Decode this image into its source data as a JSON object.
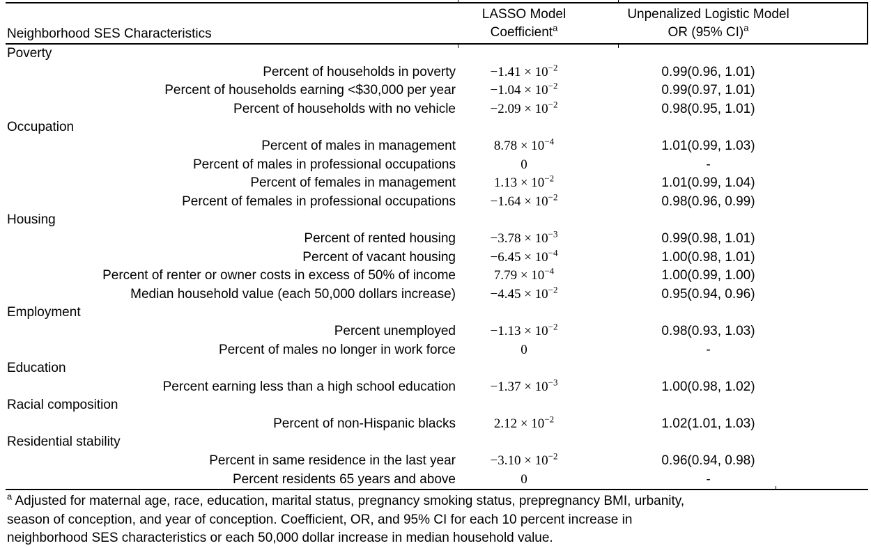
{
  "table": {
    "header": {
      "col1": "Neighborhood SES Characteristics",
      "col2_line1": "LASSO Model",
      "col2_line2": "Coefficient",
      "col2_sup": "a",
      "col3_line1": "Unpenalized Logistic Model",
      "col3_line2": "OR (95% CI)",
      "col3_sup": "a"
    },
    "sections": [
      {
        "name": "Poverty",
        "rows": [
          {
            "label": "Percent of households in poverty",
            "coef_base": "−1.41 × 10",
            "coef_exp": "−2",
            "or": "0.99(0.96, 1.01)"
          },
          {
            "label": "Percent of households earning <$30,000 per year",
            "coef_base": "−1.04 × 10",
            "coef_exp": "−2",
            "or": "0.99(0.97, 1.01)"
          },
          {
            "label": "Percent of households with no vehicle",
            "coef_base": "−2.09 × 10",
            "coef_exp": "−2",
            "or": "0.98(0.95, 1.01)"
          }
        ]
      },
      {
        "name": "Occupation",
        "rows": [
          {
            "label": "Percent of males in management",
            "coef_base": "8.78 × 10",
            "coef_exp": "−4",
            "or": "1.01(0.99, 1.03)"
          },
          {
            "label": "Percent of males in professional occupations",
            "coef_base": "0",
            "coef_exp": "",
            "or": "-"
          },
          {
            "label": "Percent of females in management",
            "coef_base": "1.13 × 10",
            "coef_exp": "−2",
            "or": "1.01(0.99, 1.04)"
          },
          {
            "label": "Percent of females in professional occupations",
            "coef_base": "−1.64 × 10",
            "coef_exp": "−2",
            "or": "0.98(0.96, 0.99)"
          }
        ]
      },
      {
        "name": "Housing",
        "rows": [
          {
            "label": "Percent of rented housing",
            "coef_base": "−3.78 × 10",
            "coef_exp": "−3",
            "or": "0.99(0.98, 1.01)"
          },
          {
            "label": "Percent of vacant housing",
            "coef_base": "−6.45 × 10",
            "coef_exp": "−4",
            "or": "1.00(0.98, 1.01)"
          },
          {
            "label": "Percent of renter or owner costs in excess of 50% of income",
            "coef_base": "7.79 × 10",
            "coef_exp": "−4",
            "or": "1.00(0.99, 1.00)"
          },
          {
            "label": "Median household value (each 50,000 dollars increase)",
            "coef_base": "−4.45 × 10",
            "coef_exp": "−2",
            "or": "0.95(0.94, 0.96)"
          }
        ]
      },
      {
        "name": "Employment",
        "rows": [
          {
            "label": "Percent unemployed",
            "coef_base": "−1.13 × 10",
            "coef_exp": "−2",
            "or": "0.98(0.93, 1.03)"
          },
          {
            "label": "Percent of males no longer in work force",
            "coef_base": "0",
            "coef_exp": "",
            "or": "-"
          }
        ]
      },
      {
        "name": "Education",
        "rows": [
          {
            "label": "Percent earning less than a high school education",
            "coef_base": "−1.37 × 10",
            "coef_exp": "−3",
            "or": "1.00(0.98, 1.02)"
          }
        ]
      },
      {
        "name": "Racial composition",
        "rows": [
          {
            "label": "Percent of non-Hispanic blacks",
            "coef_base": "2.12 × 10",
            "coef_exp": "−2",
            "or": "1.02(1.01, 1.03)"
          }
        ]
      },
      {
        "name": "Residential stability",
        "rows": [
          {
            "label": "Percent in same residence in the last year",
            "coef_base": "−3.10 × 10",
            "coef_exp": "−2",
            "or": "0.96(0.94, 0.98)"
          },
          {
            "label": "Percent residents 65 years and above",
            "coef_base": "0",
            "coef_exp": "",
            "or": "-"
          }
        ]
      }
    ],
    "footnote": {
      "sup": "a",
      "line1": " Adjusted for maternal age, race, education, marital status, pregnancy smoking status, prepregnancy BMI, urbanity,",
      "line2": "season of conception, and year of conception. Coefficient, OR, and 95% CI for each 10 percent increase in",
      "line3": "neighborhood SES characteristics or each 50,000 dollar increase in median household value."
    }
  }
}
